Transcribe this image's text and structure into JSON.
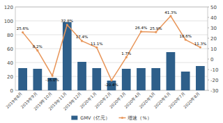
{
  "chart_data": {
    "type": "bar",
    "categories": [
      "2019年8月",
      "2019年9月",
      "2019年10月",
      "2019年11月",
      "2019年12月",
      "2020年1月",
      "2020年2月",
      "2020年3月",
      "2020年4月",
      "2020年5月",
      "2020年6月",
      "2020年7月",
      "2020年8月"
    ],
    "series": [
      {
        "name": "GMV（亿元）",
        "type": "bar",
        "color": "#2e5f8a",
        "values": [
          32,
          31,
          18,
          98,
          41,
          32,
          14,
          31,
          32,
          32,
          55,
          27,
          35
        ]
      },
      {
        "name": "增速（%）",
        "type": "line",
        "axis": "y2",
        "color": "#e8965a",
        "marker": "circle",
        "data_labels": true,
        "values": [
          25.6,
          8.2,
          -16.0,
          32.8,
          17.4,
          11.1,
          -20.4,
          1.7,
          26.4,
          25.9,
          41.3,
          18.6,
          11.3
        ],
        "value_labels": [
          "25.6%",
          "8.2%",
          "-16.0%",
          "32.8%",
          "17.4%",
          "11.1%",
          "-20.4%",
          "1.7%",
          "26.4%",
          "25.9%",
          "41.3%",
          "18.6%",
          "11.3%"
        ]
      }
    ],
    "ylim": [
      0,
      120
    ],
    "yticks": [
      0,
      20,
      40,
      60,
      80,
      100,
      120
    ],
    "y2lim": [
      -30,
      50
    ],
    "y2ticks": [
      -30,
      -20,
      -10,
      0,
      10,
      20,
      30,
      40,
      50
    ],
    "grid": true,
    "legend": "bottom"
  }
}
